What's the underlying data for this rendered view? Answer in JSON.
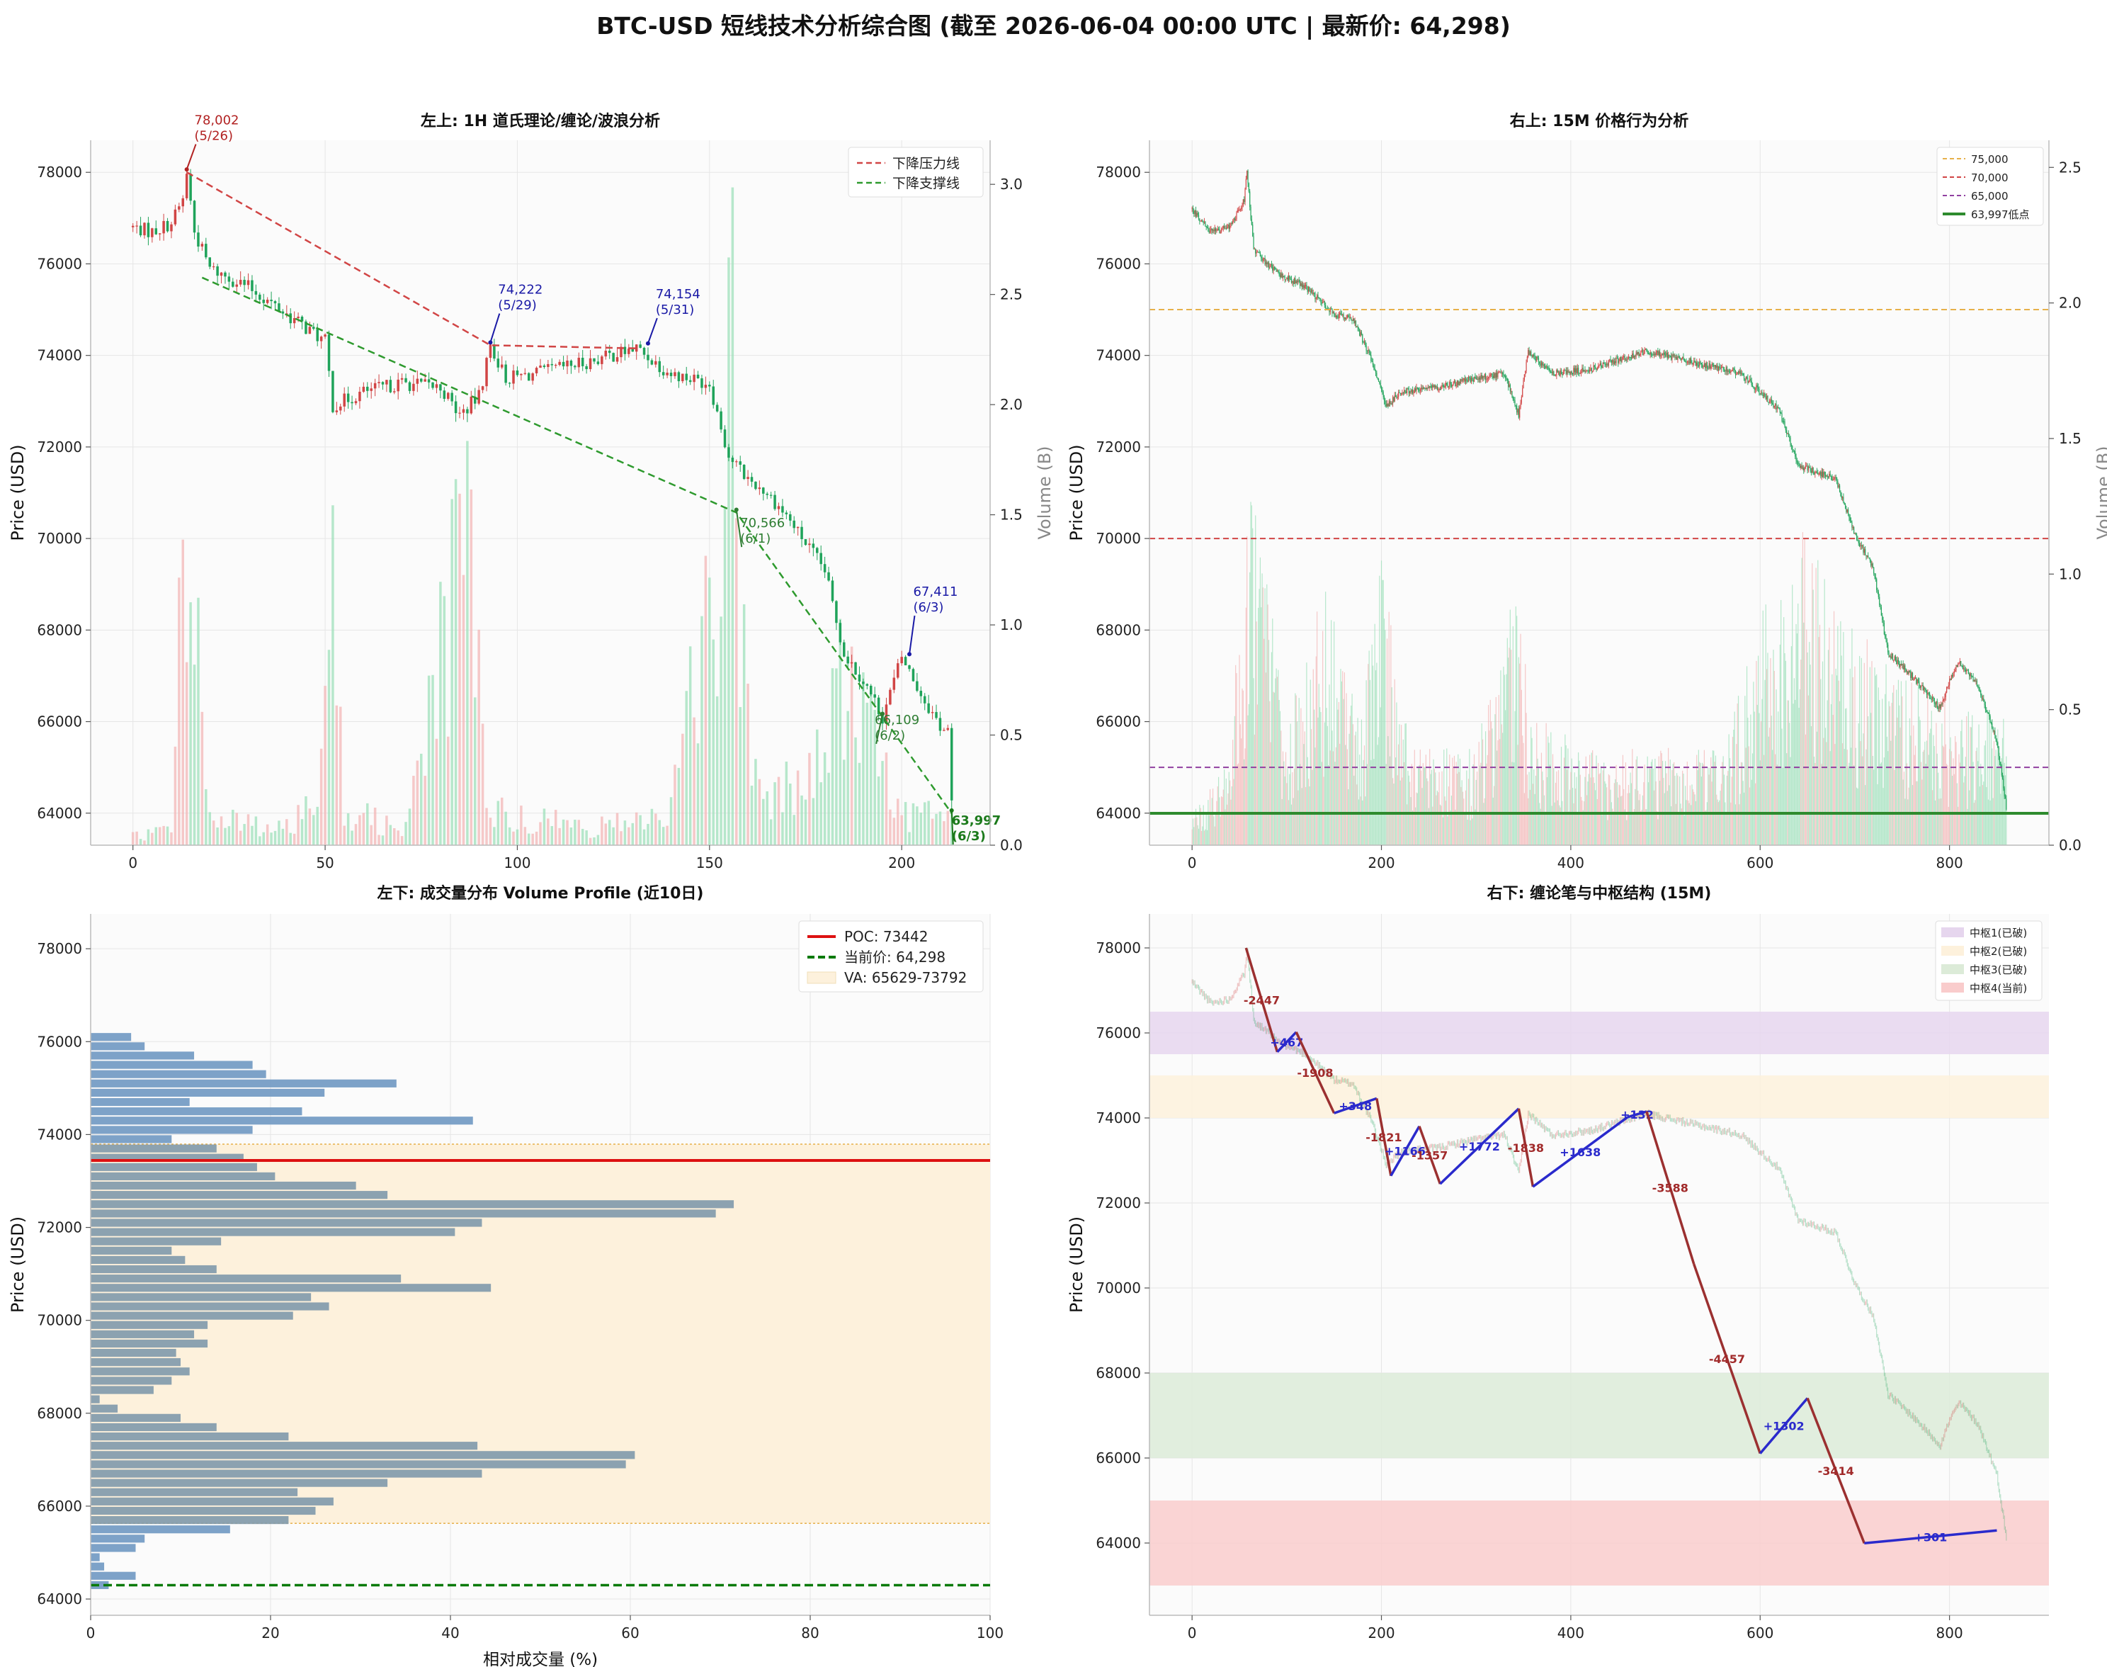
{
  "title": "BTC-USD 短线技术分析综合图 (截至 2026-06-04 00:00 UTC | 最新价: 64,298)",
  "colors": {
    "up": "#d14545",
    "down": "#1fa35a",
    "up_light": "#f3b7b7",
    "down_light": "#9fe0bb",
    "pen_up": "#2a2acc",
    "pen_down": "#9b3030",
    "bar": "#6f98c2",
    "bar_dark": "#7f99ab",
    "grid": "#e6e6e6",
    "panel_bg": "#fbfbfb"
  },
  "chart_data": [
    {
      "id": "tl",
      "type": "candlestick",
      "title": "左上: 1H 道氏理论/缠论/波浪分析",
      "ylabel": "Price (USD)",
      "y2label": "Volume (B)",
      "xlim": [
        -11,
        223
      ],
      "ylim": [
        63300,
        78700
      ],
      "y2lim": [
        0,
        3.2
      ],
      "xticks": [
        0,
        50,
        100,
        150,
        200
      ],
      "yticks": [
        64000,
        66000,
        68000,
        70000,
        72000,
        74000,
        76000,
        78000
      ],
      "y2ticks": [
        "0.0",
        "0.5",
        "1.0",
        "1.5",
        "2.0",
        "2.5",
        "3.0"
      ],
      "y2tick_values": [
        0,
        0.5,
        1,
        1.5,
        2,
        2.5,
        3
      ],
      "price_path": [
        [
          0,
          76800
        ],
        [
          5,
          76700
        ],
        [
          10,
          76900
        ],
        [
          13,
          77400
        ],
        [
          14,
          78002
        ],
        [
          16,
          76700
        ],
        [
          20,
          75900
        ],
        [
          30,
          75500
        ],
        [
          40,
          74900
        ],
        [
          50,
          74300
        ],
        [
          52,
          72900
        ],
        [
          60,
          73200
        ],
        [
          70,
          73400
        ],
        [
          80,
          73300
        ],
        [
          85,
          72700
        ],
        [
          90,
          73100
        ],
        [
          93,
          74222
        ],
        [
          97,
          73500
        ],
        [
          105,
          73600
        ],
        [
          120,
          73900
        ],
        [
          131,
          74154
        ],
        [
          140,
          73600
        ],
        [
          150,
          73400
        ],
        [
          155,
          71800
        ],
        [
          160,
          71300
        ],
        [
          165,
          71000
        ],
        [
          170,
          70500
        ],
        [
          180,
          69300
        ],
        [
          185,
          67500
        ],
        [
          190,
          66900
        ],
        [
          195,
          66109
        ],
        [
          200,
          67411
        ],
        [
          205,
          66600
        ],
        [
          210,
          65900
        ],
        [
          212,
          65800
        ],
        [
          213,
          64200
        ]
      ],
      "volume_profile": [
        [
          0,
          0.05
        ],
        [
          10,
          0.1
        ],
        [
          14,
          2.2
        ],
        [
          16,
          1.7
        ],
        [
          20,
          0.15
        ],
        [
          40,
          0.1
        ],
        [
          48,
          0.3
        ],
        [
          51,
          2.7
        ],
        [
          55,
          0.2
        ],
        [
          70,
          0.1
        ],
        [
          88,
          1.8
        ],
        [
          92,
          0.2
        ],
        [
          120,
          0.1
        ],
        [
          140,
          0.2
        ],
        [
          150,
          1.4
        ],
        [
          155,
          2.9
        ],
        [
          158,
          1.9
        ],
        [
          162,
          0.4
        ],
        [
          175,
          0.3
        ],
        [
          185,
          1.0
        ],
        [
          192,
          0.6
        ],
        [
          200,
          0.2
        ],
        [
          213,
          0.15
        ]
      ],
      "lines": [
        {
          "name": "下降压力线",
          "color": "#d14545",
          "points": [
            [
              14,
              78002
            ],
            [
              93,
              74222
            ],
            [
              131,
              74154
            ]
          ]
        },
        {
          "name": "下降支撑线",
          "color": "#2e9a2e",
          "points": [
            [
              18,
              75700
            ],
            [
              157,
              70566
            ],
            [
              213,
              63997
            ]
          ]
        }
      ],
      "annotations": [
        {
          "text": "78,002",
          "sub": "(5/26)",
          "color": "#b22222",
          "x": 14,
          "y": 78002,
          "tx": 16,
          "ty": 78800
        },
        {
          "text": "74,222",
          "sub": "(5/29)",
          "color": "#1a1aa6",
          "x": 93,
          "y": 74222,
          "tx": 95,
          "ty": 75100
        },
        {
          "text": "74,154",
          "sub": "(5/31)",
          "color": "#1a1aa6",
          "x": 134,
          "y": 74200,
          "tx": 136,
          "ty": 75000
        },
        {
          "text": "70,566",
          "sub": "(6/1)",
          "color": "#2e7d32",
          "x": 157,
          "y": 70566,
          "tx": 158,
          "ty": 70000
        },
        {
          "text": "67,411",
          "sub": "(6/3)",
          "color": "#1a1aa6",
          "x": 202,
          "y": 67411,
          "tx": 203,
          "ty": 68500
        },
        {
          "text": "66,109",
          "sub": "(6/2)",
          "color": "#2e7d32",
          "x": 195,
          "y": 66109,
          "tx": 193,
          "ty": 65700
        },
        {
          "text": "63,997",
          "sub": "(6/3)",
          "color": "#1b7a1b",
          "bold": true,
          "x": 213,
          "y": 63997,
          "tx": 213,
          "ty": 63500
        }
      ],
      "legend": [
        {
          "label": "下降压力线",
          "color": "#d14545",
          "dash": true
        },
        {
          "label": "下降支撑线",
          "color": "#2e9a2e",
          "dash": true
        }
      ],
      "legend_position": "top-right"
    },
    {
      "id": "tr",
      "type": "candlestick",
      "title": "右上: 15M 价格行为分析",
      "ylabel": "Price (USD)",
      "y2label": "Volume (B)",
      "xlim": [
        -45,
        905
      ],
      "ylim": [
        63300,
        78700
      ],
      "y2lim": [
        0,
        2.6
      ],
      "xticks": [
        0,
        200,
        400,
        600,
        800
      ],
      "yticks": [
        64000,
        66000,
        68000,
        70000,
        72000,
        74000,
        76000,
        78000
      ],
      "y2ticks": [
        "0.0",
        "0.5",
        "1.0",
        "1.5",
        "2.0",
        "2.5"
      ],
      "y2tick_values": [
        0,
        0.5,
        1,
        1.5,
        2,
        2.5
      ],
      "price_path": [
        [
          0,
          77200
        ],
        [
          20,
          76700
        ],
        [
          40,
          76800
        ],
        [
          55,
          77400
        ],
        [
          58,
          78000
        ],
        [
          65,
          76300
        ],
        [
          90,
          75800
        ],
        [
          120,
          75500
        ],
        [
          150,
          74900
        ],
        [
          170,
          74800
        ],
        [
          190,
          73900
        ],
        [
          205,
          72900
        ],
        [
          220,
          73200
        ],
        [
          260,
          73300
        ],
        [
          300,
          73500
        ],
        [
          330,
          73600
        ],
        [
          345,
          72700
        ],
        [
          355,
          74100
        ],
        [
          380,
          73600
        ],
        [
          420,
          73700
        ],
        [
          450,
          73900
        ],
        [
          480,
          74100
        ],
        [
          520,
          73900
        ],
        [
          560,
          73700
        ],
        [
          580,
          73600
        ],
        [
          600,
          73200
        ],
        [
          620,
          72800
        ],
        [
          640,
          71600
        ],
        [
          680,
          71300
        ],
        [
          700,
          70100
        ],
        [
          720,
          69300
        ],
        [
          735,
          67500
        ],
        [
          760,
          67000
        ],
        [
          790,
          66300
        ],
        [
          800,
          66900
        ],
        [
          810,
          67300
        ],
        [
          830,
          66800
        ],
        [
          850,
          65600
        ],
        [
          860,
          64100
        ]
      ],
      "volume_profile": [
        [
          0,
          0.1
        ],
        [
          40,
          0.3
        ],
        [
          60,
          1.2
        ],
        [
          100,
          0.4
        ],
        [
          140,
          0.8
        ],
        [
          180,
          0.5
        ],
        [
          200,
          1.0
        ],
        [
          230,
          0.3
        ],
        [
          300,
          0.3
        ],
        [
          340,
          0.8
        ],
        [
          360,
          0.4
        ],
        [
          420,
          0.3
        ],
        [
          480,
          0.3
        ],
        [
          560,
          0.3
        ],
        [
          600,
          0.7
        ],
        [
          640,
          1.0
        ],
        [
          700,
          0.7
        ],
        [
          760,
          0.5
        ],
        [
          860,
          0.4
        ]
      ],
      "hlines": [
        {
          "value": 75000,
          "label": "75,000",
          "color": "#e6b04a",
          "style": "dashed"
        },
        {
          "value": 70000,
          "label": "70,000",
          "color": "#d14545",
          "style": "dashed"
        },
        {
          "value": 65000,
          "label": "65,000",
          "color": "#9040a0",
          "style": "dashed"
        },
        {
          "value": 63997,
          "label": "63,997低点",
          "color": "#2e8b2e",
          "style": "solid"
        }
      ],
      "legend_position": "top-right"
    },
    {
      "id": "bl",
      "type": "bar",
      "orientation": "horizontal",
      "title": "左下: 成交量分布 Volume Profile (近10日)",
      "ylabel": "Price (USD)",
      "xlabel": "相对成交量 (%)",
      "xlim": [
        0,
        100
      ],
      "ylim": [
        63650,
        78750
      ],
      "xticks": [
        0,
        20,
        40,
        60,
        80,
        100
      ],
      "yticks": [
        64000,
        66000,
        68000,
        70000,
        72000,
        74000,
        76000,
        78000
      ],
      "bin_step": 201,
      "bins": [
        [
          64300,
          2
        ],
        [
          64500,
          5
        ],
        [
          64700,
          1.5
        ],
        [
          64900,
          1
        ],
        [
          65100,
          5
        ],
        [
          65300,
          6
        ],
        [
          65500,
          15.5
        ],
        [
          65700,
          22
        ],
        [
          65900,
          25
        ],
        [
          66100,
          27
        ],
        [
          66300,
          23
        ],
        [
          66500,
          33
        ],
        [
          66700,
          43.5
        ],
        [
          66900,
          59.5
        ],
        [
          67100,
          60.5
        ],
        [
          67300,
          43
        ],
        [
          67500,
          22
        ],
        [
          67700,
          14
        ],
        [
          67900,
          10
        ],
        [
          68100,
          3
        ],
        [
          68300,
          1
        ],
        [
          68500,
          7
        ],
        [
          68700,
          9
        ],
        [
          68900,
          11
        ],
        [
          69100,
          10
        ],
        [
          69300,
          9.5
        ],
        [
          69500,
          13
        ],
        [
          69700,
          11.5
        ],
        [
          69900,
          13
        ],
        [
          70100,
          22.5
        ],
        [
          70300,
          26.5
        ],
        [
          70500,
          24.5
        ],
        [
          70700,
          44.5
        ],
        [
          70900,
          34.5
        ],
        [
          71100,
          14
        ],
        [
          71300,
          10.5
        ],
        [
          71500,
          9
        ],
        [
          71700,
          14.5
        ],
        [
          71900,
          40.5
        ],
        [
          72100,
          43.5
        ],
        [
          72300,
          69.5
        ],
        [
          72500,
          71.5
        ],
        [
          72700,
          33
        ],
        [
          72900,
          29.5
        ],
        [
          73100,
          20.5
        ],
        [
          73300,
          18.5
        ],
        [
          73500,
          17
        ],
        [
          73700,
          14
        ],
        [
          73900,
          9
        ],
        [
          74100,
          18
        ],
        [
          74300,
          42.5
        ],
        [
          74500,
          23.5
        ],
        [
          74700,
          11
        ],
        [
          74900,
          26
        ],
        [
          75100,
          34
        ],
        [
          75300,
          19.5
        ],
        [
          75500,
          18
        ],
        [
          75700,
          11.5
        ],
        [
          75900,
          6
        ],
        [
          76100,
          4.5
        ]
      ],
      "poc": 73442,
      "current": 64298,
      "va": [
        65629,
        73792
      ],
      "legend": [
        {
          "label": "POC: 73442",
          "color": "#dd1111",
          "kind": "solid"
        },
        {
          "label": "当前价: 64,298",
          "color": "#0a7a0a",
          "kind": "dashed"
        },
        {
          "label": "VA: 65629-73792",
          "color": "#fdf1dc",
          "kind": "patch"
        }
      ],
      "legend_position": "top-right"
    },
    {
      "id": "br",
      "type": "line",
      "title": "右下: 缠论笔与中枢结构 (15M)",
      "ylabel": "Price (USD)",
      "xlim": [
        -45,
        905
      ],
      "ylim": [
        62300,
        78800
      ],
      "xticks": [
        0,
        200,
        400,
        600,
        800
      ],
      "yticks": [
        64000,
        66000,
        68000,
        70000,
        72000,
        74000,
        76000,
        78000
      ],
      "zones": [
        {
          "label": "中枢1(已破)",
          "y0": 75500,
          "y1": 76500,
          "color": "#e6d6ee"
        },
        {
          "label": "中枢2(已破)",
          "y0": 74000,
          "y1": 75000,
          "color": "#fdf1dc"
        },
        {
          "label": "中枢3(已破)",
          "y0": 66000,
          "y1": 68000,
          "color": "#dcebd8"
        },
        {
          "label": "中枢4(当前)",
          "y0": 63000,
          "y1": 65000,
          "color": "#f9cccc"
        }
      ],
      "pens": [
        {
          "x": [
            57,
            90
          ],
          "y": [
            78000,
            75553
          ],
          "label": "-2447"
        },
        {
          "x": [
            90,
            110
          ],
          "y": [
            75553,
            76020
          ],
          "label": "+467"
        },
        {
          "x": [
            110,
            150
          ],
          "y": [
            76020,
            74112
          ],
          "label": "-1908"
        },
        {
          "x": [
            150,
            195
          ],
          "y": [
            74112,
            74460
          ],
          "label": "+348"
        },
        {
          "x": [
            195,
            210
          ],
          "y": [
            74460,
            72639
          ],
          "label": "-1821"
        },
        {
          "x": [
            210,
            240
          ],
          "y": [
            72639,
            73805
          ],
          "label": "+1166"
        },
        {
          "x": [
            240,
            262
          ],
          "y": [
            73805,
            72448
          ],
          "label": "-1357"
        },
        {
          "x": [
            262,
            345
          ],
          "y": [
            72448,
            74220
          ],
          "label": "+1772"
        },
        {
          "x": [
            345,
            360
          ],
          "y": [
            74220,
            72382
          ],
          "label": "-1838"
        },
        {
          "x": [
            360,
            460
          ],
          "y": [
            72382,
            74020
          ],
          "label": "+1638"
        },
        {
          "x": [
            460,
            480
          ],
          "y": [
            74020,
            74152
          ],
          "label": "+132"
        },
        {
          "x": [
            480,
            530
          ],
          "y": [
            74152,
            70564
          ],
          "label": "-3588"
        },
        {
          "x": [
            530,
            600
          ],
          "y": [
            70564,
            66107
          ],
          "label": "-4457"
        },
        {
          "x": [
            600,
            650
          ],
          "y": [
            66107,
            67409
          ],
          "label": "+1302"
        },
        {
          "x": [
            650,
            710
          ],
          "y": [
            67409,
            63995
          ],
          "label": "-3414"
        },
        {
          "x": [
            710,
            850
          ],
          "y": [
            63995,
            64296
          ],
          "label": "+301"
        }
      ],
      "legend_position": "top-right"
    }
  ]
}
